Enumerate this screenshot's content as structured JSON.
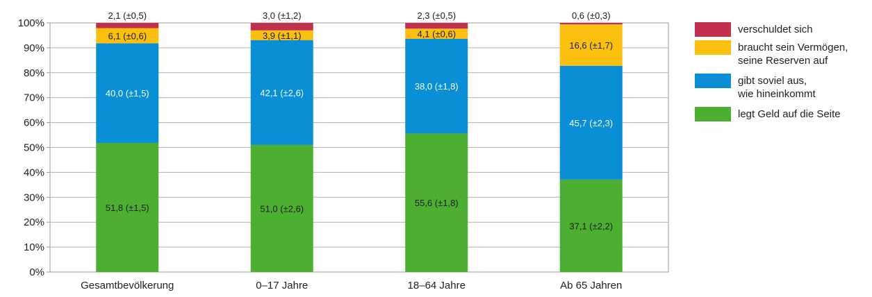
{
  "chart_data": {
    "type": "bar",
    "stacked": true,
    "categories": [
      "Gesamtbevölkerung",
      "0–17 Jahre",
      "18–64 Jahre",
      "Ab 65 Jahren"
    ],
    "series": [
      {
        "name": "legt Geld auf die Seite",
        "color": "#4caf32",
        "values": [
          51.8,
          51.0,
          55.6,
          37.1
        ],
        "labels": [
          "51,8 (±1,5)",
          "51,0 (±2,6)",
          "55,6 (±1,8)",
          "37,1 (±2,2)"
        ],
        "label_color": "#1a1a1a"
      },
      {
        "name": "gibt soviel aus, wie hineinkommt",
        "legend_lines": [
          "gibt soviel aus,",
          "wie hineinkommt"
        ],
        "color": "#0a8fd6",
        "values": [
          40.0,
          42.1,
          38.0,
          45.7
        ],
        "labels": [
          "40,0 (±1,5)",
          "42,1 (±2,6)",
          "38,0 (±1,8)",
          "45,7 (±2,3)"
        ],
        "label_color": "#ffffff"
      },
      {
        "name": "braucht sein Vermögen, seine Reserven auf",
        "legend_lines": [
          "braucht sein Vermögen,",
          "seine Reserven auf"
        ],
        "color": "#fbbf10",
        "values": [
          6.1,
          3.9,
          4.1,
          16.6
        ],
        "labels": [
          "6,1 (±0,6)",
          "3,9 (±1,1)",
          "4,1 (±0,6)",
          "16,6 (±1,7)"
        ],
        "label_color": "#1a1a1a"
      },
      {
        "name": "verschuldet sich",
        "color": "#c2304f",
        "values": [
          2.1,
          3.0,
          2.3,
          0.6
        ],
        "labels": [
          "2,1 (±0,5)",
          "3,0 (±1,2)",
          "2,3 (±0,5)",
          "0,6 (±0,3)"
        ],
        "label_color": "#1a1a1a"
      }
    ],
    "y_ticks": [
      "0%",
      "10%",
      "20%",
      "30%",
      "40%",
      "50%",
      "60%",
      "70%",
      "80%",
      "90%",
      "100%"
    ],
    "ylim": [
      0,
      100
    ],
    "xlabel": "",
    "ylabel": "",
    "grid": true,
    "legend_position": "right",
    "legend_order": [
      3,
      2,
      1,
      0
    ],
    "top_labels_series": 3
  }
}
